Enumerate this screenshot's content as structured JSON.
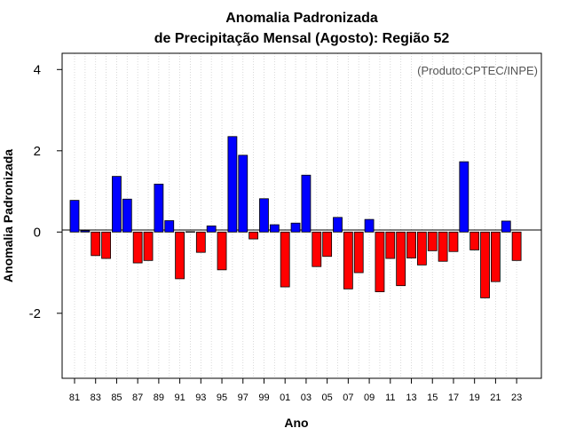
{
  "chart_data": {
    "type": "bar",
    "title": "Anomalia Padronizada",
    "subtitle": "de Precipitação Mensal (Agosto): Região 52",
    "xlabel": "Ano",
    "ylabel": "Anomalia Padronizada",
    "credit": "(Produto:CPTEC/INPE)",
    "ylim": [
      -3.6,
      4.4
    ],
    "yticks": [
      -2,
      0,
      2,
      4
    ],
    "grid": "vertical dotted",
    "positive_color": "#0000ff",
    "negative_color": "#ff0000",
    "categories": [
      "81",
      "82",
      "83",
      "84",
      "85",
      "86",
      "87",
      "88",
      "89",
      "90",
      "91",
      "92",
      "93",
      "94",
      "95",
      "96",
      "97",
      "98",
      "99",
      "00",
      "01",
      "02",
      "03",
      "04",
      "05",
      "06",
      "07",
      "08",
      "09",
      "10",
      "11",
      "12",
      "13",
      "14",
      "15",
      "16",
      "17",
      "18",
      "19",
      "20",
      "21",
      "22",
      "23"
    ],
    "xtick_labels": [
      "81",
      "83",
      "85",
      "87",
      "89",
      "91",
      "93",
      "95",
      "97",
      "99",
      "01",
      "03",
      "05",
      "07",
      "09",
      "11",
      "13",
      "15",
      "17",
      "19",
      "21",
      "23"
    ],
    "values": [
      0.78,
      0.03,
      -0.58,
      -0.65,
      1.37,
      0.81,
      -0.76,
      -0.7,
      1.18,
      0.28,
      -1.15,
      0.01,
      -0.5,
      0.15,
      -0.93,
      2.35,
      1.89,
      -0.17,
      0.82,
      0.18,
      -1.35,
      0.22,
      1.4,
      -0.85,
      -0.6,
      0.36,
      -1.4,
      -1.0,
      0.31,
      -1.47,
      -0.65,
      -1.32,
      -0.64,
      -0.81,
      -0.46,
      -0.72,
      -0.48,
      1.73,
      -0.44,
      -1.62,
      -1.22,
      0.27,
      -0.7
    ]
  }
}
